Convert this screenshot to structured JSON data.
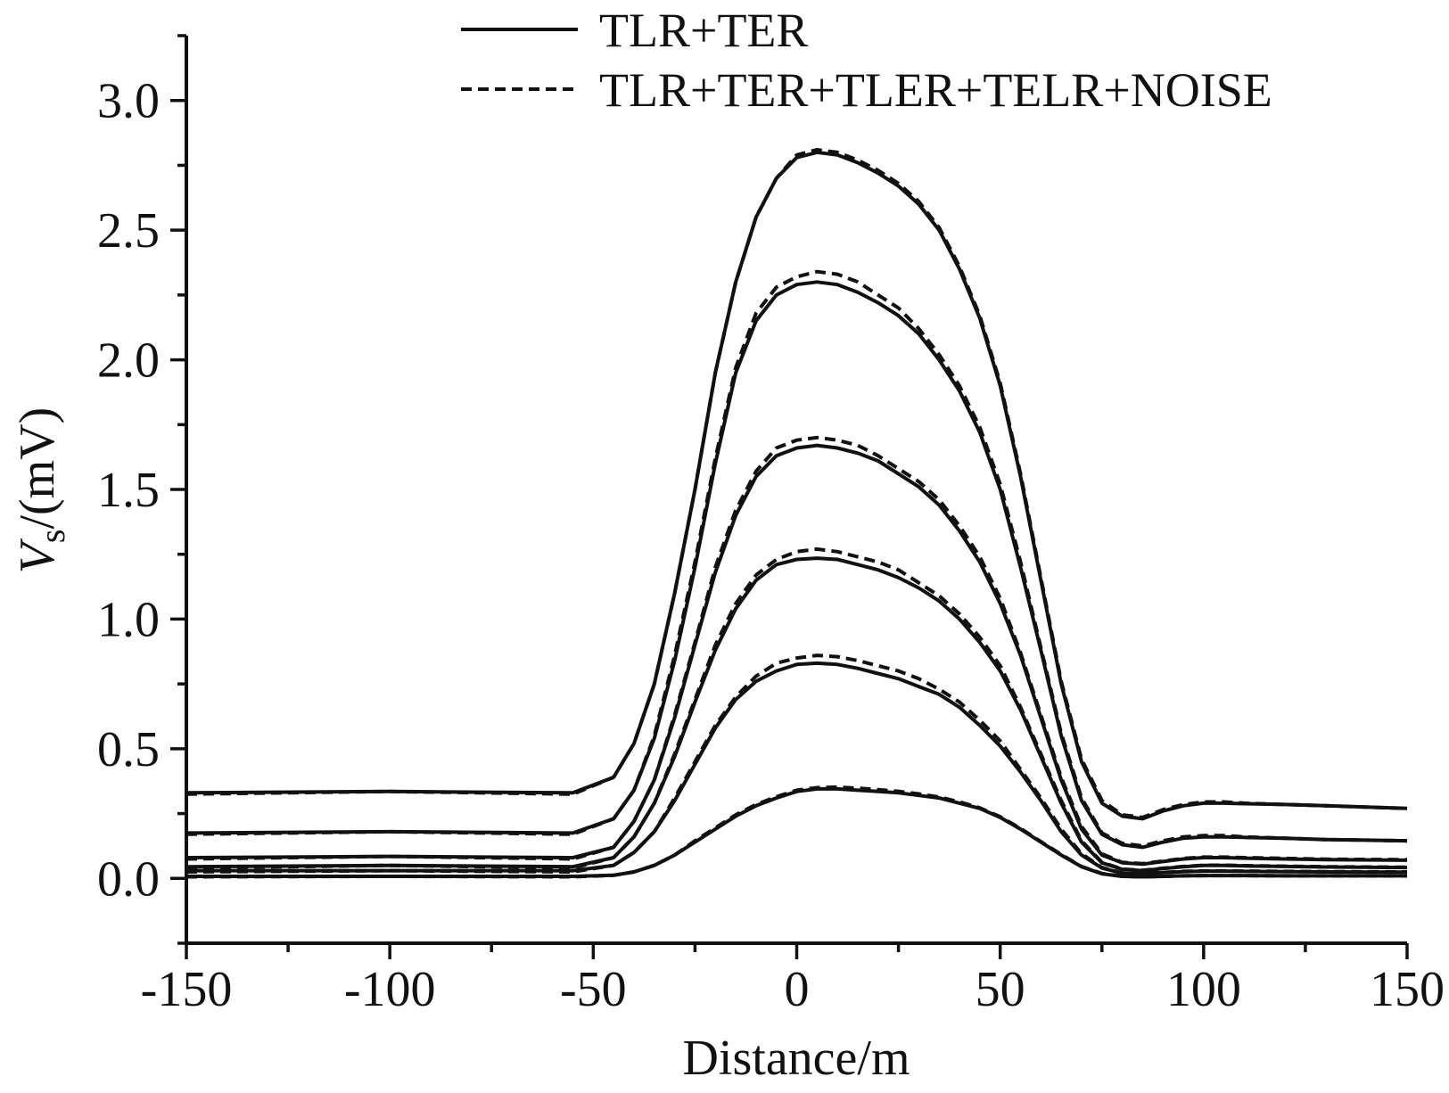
{
  "chart_data": {
    "type": "line",
    "title": "",
    "xlabel": "Distance/m",
    "ylabel": {
      "main": "V",
      "subscript": "s",
      "suffix": "/(mV)"
    },
    "xlim": [
      -150,
      150
    ],
    "ylim": [
      -0.25,
      3.25
    ],
    "x_ticks": [
      -150,
      -100,
      -50,
      0,
      50,
      100,
      150
    ],
    "x_tick_labels": [
      "-150",
      "-100",
      "-50",
      "0",
      "50",
      "100",
      "150"
    ],
    "y_ticks": [
      0.0,
      0.5,
      1.0,
      1.5,
      2.0,
      2.5,
      3.0
    ],
    "y_tick_labels": [
      "0.0",
      "0.5",
      "1.0",
      "1.5",
      "2.0",
      "2.5",
      "3.0"
    ],
    "grid": false,
    "legend": {
      "placement": "top-center",
      "entries": [
        {
          "label": "TLR+TER",
          "style": "solid"
        },
        {
          "label": "TLR+TER+TLER+TELR+NOISE",
          "style": "dashed"
        }
      ]
    },
    "x": [
      -150,
      -100,
      -55,
      -45,
      -40,
      -35,
      -30,
      -25,
      -20,
      -15,
      -10,
      -5,
      0,
      5,
      10,
      15,
      20,
      25,
      30,
      35,
      40,
      45,
      50,
      55,
      60,
      65,
      70,
      75,
      80,
      85,
      90,
      95,
      100,
      105,
      110,
      120,
      130,
      150
    ],
    "series": [
      {
        "name": "",
        "style": "solid",
        "values": [
          0.33,
          0.335,
          0.33,
          0.39,
          0.52,
          0.75,
          1.1,
          1.5,
          1.95,
          2.3,
          2.55,
          2.7,
          2.78,
          2.8,
          2.79,
          2.76,
          2.72,
          2.67,
          2.6,
          2.5,
          2.35,
          2.16,
          1.9,
          1.55,
          1.15,
          0.75,
          0.45,
          0.29,
          0.24,
          0.23,
          0.26,
          0.28,
          0.29,
          0.29,
          0.288,
          0.285,
          0.28,
          0.27
        ]
      },
      {
        "name": "",
        "style": "dashed",
        "values": [
          0.325,
          0.335,
          0.325,
          0.39,
          0.52,
          0.75,
          1.1,
          1.5,
          1.95,
          2.3,
          2.55,
          2.7,
          2.79,
          2.81,
          2.8,
          2.77,
          2.73,
          2.68,
          2.61,
          2.51,
          2.36,
          2.17,
          1.91,
          1.56,
          1.16,
          0.76,
          0.46,
          0.3,
          0.245,
          0.235,
          0.265,
          0.285,
          0.295,
          0.295,
          0.29,
          0.285,
          0.28,
          0.27
        ]
      },
      {
        "name": "",
        "style": "solid",
        "values": [
          0.175,
          0.18,
          0.175,
          0.23,
          0.34,
          0.54,
          0.84,
          1.2,
          1.6,
          1.95,
          2.15,
          2.25,
          2.29,
          2.3,
          2.29,
          2.26,
          2.22,
          2.17,
          2.1,
          2.0,
          1.88,
          1.72,
          1.5,
          1.2,
          0.88,
          0.55,
          0.3,
          0.17,
          0.13,
          0.12,
          0.14,
          0.155,
          0.16,
          0.16,
          0.158,
          0.155,
          0.15,
          0.145
        ]
      },
      {
        "name": "",
        "style": "dashed",
        "values": [
          0.17,
          0.18,
          0.17,
          0.23,
          0.34,
          0.55,
          0.86,
          1.22,
          1.62,
          1.97,
          2.18,
          2.28,
          2.32,
          2.34,
          2.33,
          2.3,
          2.25,
          2.2,
          2.12,
          2.02,
          1.9,
          1.74,
          1.52,
          1.22,
          0.89,
          0.56,
          0.31,
          0.175,
          0.135,
          0.125,
          0.145,
          0.16,
          0.165,
          0.165,
          0.16,
          0.155,
          0.15,
          0.145
        ]
      },
      {
        "name": "",
        "style": "solid",
        "values": [
          0.08,
          0.085,
          0.08,
          0.12,
          0.22,
          0.38,
          0.62,
          0.9,
          1.18,
          1.4,
          1.55,
          1.63,
          1.66,
          1.67,
          1.66,
          1.64,
          1.61,
          1.56,
          1.51,
          1.44,
          1.34,
          1.22,
          1.06,
          0.86,
          0.62,
          0.38,
          0.19,
          0.09,
          0.06,
          0.055,
          0.065,
          0.075,
          0.08,
          0.08,
          0.078,
          0.075,
          0.072,
          0.07
        ]
      },
      {
        "name": "",
        "style": "dashed",
        "values": [
          0.075,
          0.085,
          0.075,
          0.12,
          0.22,
          0.38,
          0.63,
          0.91,
          1.2,
          1.42,
          1.57,
          1.66,
          1.69,
          1.7,
          1.69,
          1.67,
          1.63,
          1.58,
          1.53,
          1.46,
          1.36,
          1.24,
          1.08,
          0.87,
          0.63,
          0.39,
          0.2,
          0.095,
          0.062,
          0.057,
          0.067,
          0.077,
          0.082,
          0.082,
          0.08,
          0.077,
          0.074,
          0.072
        ]
      },
      {
        "name": "",
        "style": "solid",
        "values": [
          0.045,
          0.05,
          0.045,
          0.08,
          0.16,
          0.29,
          0.47,
          0.68,
          0.88,
          1.04,
          1.15,
          1.21,
          1.23,
          1.235,
          1.23,
          1.21,
          1.19,
          1.16,
          1.12,
          1.07,
          1.0,
          0.91,
          0.8,
          0.65,
          0.47,
          0.29,
          0.14,
          0.06,
          0.035,
          0.03,
          0.038,
          0.045,
          0.05,
          0.05,
          0.048,
          0.046,
          0.044,
          0.042
        ]
      },
      {
        "name": "",
        "style": "dashed",
        "values": [
          0.04,
          0.05,
          0.04,
          0.08,
          0.16,
          0.29,
          0.48,
          0.69,
          0.9,
          1.06,
          1.17,
          1.23,
          1.26,
          1.27,
          1.26,
          1.24,
          1.22,
          1.19,
          1.14,
          1.09,
          1.02,
          0.93,
          0.82,
          0.66,
          0.48,
          0.3,
          0.145,
          0.062,
          0.036,
          0.031,
          0.039,
          0.046,
          0.051,
          0.051,
          0.049,
          0.047,
          0.045,
          0.043
        ]
      },
      {
        "name": "",
        "style": "solid",
        "values": [
          0.03,
          0.03,
          0.03,
          0.05,
          0.1,
          0.18,
          0.3,
          0.44,
          0.58,
          0.69,
          0.76,
          0.8,
          0.825,
          0.83,
          0.825,
          0.81,
          0.79,
          0.77,
          0.74,
          0.71,
          0.66,
          0.59,
          0.51,
          0.41,
          0.3,
          0.18,
          0.09,
          0.04,
          0.02,
          0.018,
          0.022,
          0.026,
          0.028,
          0.028,
          0.027,
          0.026,
          0.025,
          0.024
        ]
      },
      {
        "name": "",
        "style": "dashed",
        "values": [
          0.025,
          0.03,
          0.025,
          0.05,
          0.1,
          0.18,
          0.31,
          0.45,
          0.59,
          0.7,
          0.78,
          0.83,
          0.85,
          0.86,
          0.855,
          0.84,
          0.82,
          0.8,
          0.77,
          0.73,
          0.68,
          0.61,
          0.53,
          0.42,
          0.31,
          0.19,
          0.095,
          0.042,
          0.021,
          0.019,
          0.023,
          0.027,
          0.029,
          0.029,
          0.028,
          0.027,
          0.026,
          0.025
        ]
      },
      {
        "name": "",
        "style": "solid",
        "values": [
          0.008,
          0.008,
          0.008,
          0.012,
          0.025,
          0.05,
          0.09,
          0.14,
          0.19,
          0.24,
          0.28,
          0.31,
          0.335,
          0.345,
          0.345,
          0.34,
          0.335,
          0.33,
          0.32,
          0.31,
          0.29,
          0.27,
          0.235,
          0.19,
          0.14,
          0.09,
          0.045,
          0.018,
          0.008,
          0.006,
          0.008,
          0.01,
          0.011,
          0.011,
          0.011,
          0.01,
          0.01,
          0.01
        ]
      },
      {
        "name": "",
        "style": "dashed",
        "values": [
          0.006,
          0.008,
          0.006,
          0.012,
          0.025,
          0.05,
          0.09,
          0.145,
          0.195,
          0.245,
          0.285,
          0.315,
          0.34,
          0.35,
          0.352,
          0.348,
          0.342,
          0.336,
          0.326,
          0.314,
          0.295,
          0.272,
          0.238,
          0.193,
          0.142,
          0.092,
          0.046,
          0.019,
          0.008,
          0.006,
          0.008,
          0.01,
          0.011,
          0.011,
          0.011,
          0.01,
          0.01,
          0.01
        ]
      }
    ]
  }
}
